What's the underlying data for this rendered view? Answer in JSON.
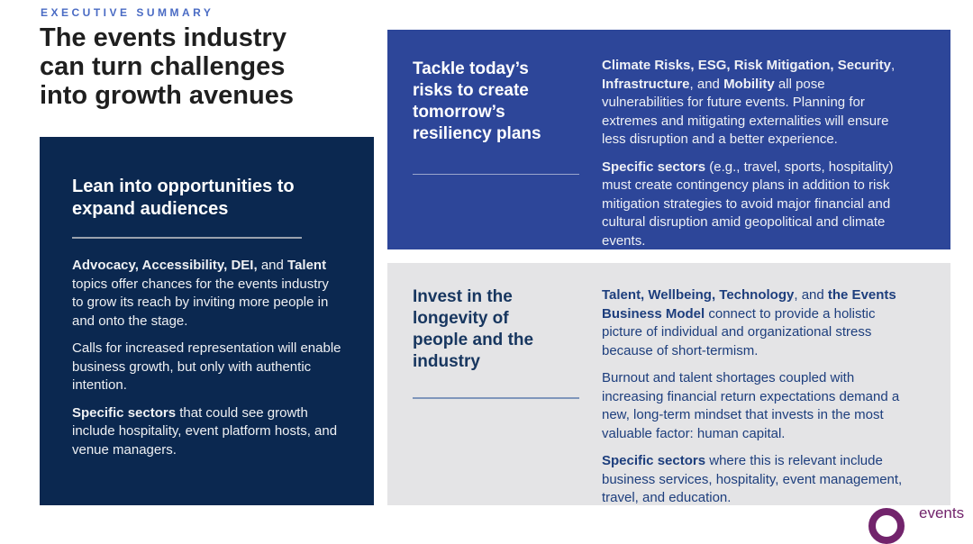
{
  "eyebrow": "EXECUTIVE SUMMARY",
  "title_lines": [
    "The events industry",
    "can turn challenges",
    "into growth avenues"
  ],
  "colors": {
    "eyebrow_blue": "#4a6bc4",
    "title_text": "#1f1f1f",
    "navy_card": "#0b2850",
    "blue_card": "#2d4699",
    "gray_card": "#e4e4e6",
    "gray_card_heading": "#17365f",
    "gray_card_text": "#1d3e7d",
    "logo_purple": "#72246c"
  },
  "cards": {
    "audiences": {
      "heading_lines": [
        "Lean into opportunities to",
        "expand audiences"
      ],
      "paragraphs": [
        [
          {
            "t": "Advocacy, Accessibility, DEI,",
            "b": true
          },
          {
            "t": " and ",
            "b": false
          },
          {
            "t": "Talent",
            "b": true
          },
          {
            "t": " topics offer chances for the events industry to grow its reach by inviting more people in and onto the stage.",
            "b": false
          }
        ],
        [
          {
            "t": "Calls for increased representation will enable business growth, but only with authentic intention.",
            "b": false
          }
        ],
        [
          {
            "t": "Specific sectors",
            "b": true
          },
          {
            "t": " that could see growth include hospitality, event platform hosts, and venue managers.",
            "b": false
          }
        ]
      ]
    },
    "risks": {
      "heading_lines": [
        "Tackle today’s",
        "risks to create",
        "tomorrow’s",
        "resiliency plans"
      ],
      "paragraphs": [
        [
          {
            "t": "Climate Risks, ESG, Risk Mitigation, Security",
            "b": true
          },
          {
            "t": ", ",
            "b": false
          },
          {
            "t": "Infrastructure",
            "b": true
          },
          {
            "t": ", and ",
            "b": false
          },
          {
            "t": "Mobility",
            "b": true
          },
          {
            "t": " all pose vulnerabilities for future events. Planning for extremes and mitigating externalities will ensure less disruption and a better experience.",
            "b": false
          }
        ],
        [
          {
            "t": "Specific sectors",
            "b": true
          },
          {
            "t": " (e.g., travel, sports, hospitality) must create contingency plans in addition to risk mitigation strategies to avoid major financial and cultural disruption amid geopolitical and climate events.",
            "b": false
          }
        ]
      ]
    },
    "longevity": {
      "heading_lines": [
        "Invest in the",
        "longevity of",
        "people and the",
        "industry"
      ],
      "paragraphs": [
        [
          {
            "t": "Talent, Wellbeing, Technology",
            "b": true
          },
          {
            "t": ", and ",
            "b": false
          },
          {
            "t": "the Events Business Model",
            "b": true
          },
          {
            "t": " connect to provide a holistic picture of individual and organizational stress because of short-termism.",
            "b": false
          }
        ],
        [
          {
            "t": "Burnout and talent shortages coupled with increasing financial return expectations demand a new, long-term mindset that invests in the most valuable factor: human capital.",
            "b": false
          }
        ],
        [
          {
            "t": "Specific sectors",
            "b": true
          },
          {
            "t": " where this is relevant include business services, hospitality, event management, travel, and education.",
            "b": false
          }
        ]
      ]
    }
  },
  "logo": {
    "label": "events"
  }
}
